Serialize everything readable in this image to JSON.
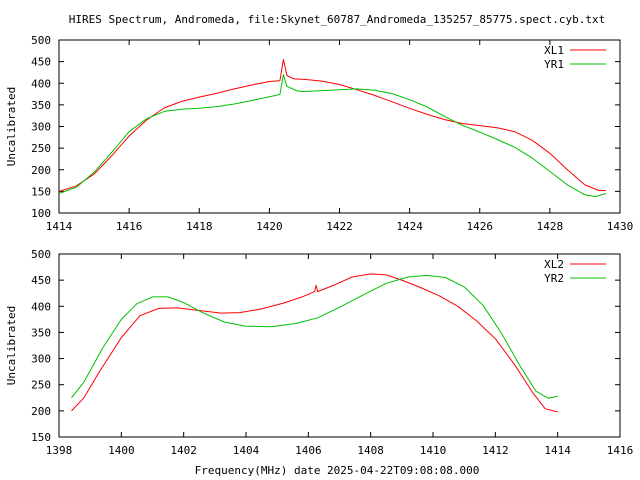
{
  "title": "HIRES Spectrum, Andromeda, file:Skynet_60787_Andromeda_135257_85775.spect.cyb.txt",
  "footer_xlabel": "Frequency(MHz) date 2025-04-22T09:08:08.000",
  "chart_data": [
    {
      "type": "line",
      "title": "HIRES Spectrum, Andromeda, file:Skynet_60787_Andromeda_135257_85775.spect.cyb.txt",
      "xlabel": "",
      "ylabel": "Uncalibrated",
      "xlim": [
        1414,
        1430
      ],
      "ylim": [
        100,
        500
      ],
      "xticks": [
        1414,
        1416,
        1418,
        1420,
        1422,
        1424,
        1426,
        1428,
        1430
      ],
      "yticks": [
        100,
        150,
        200,
        250,
        300,
        350,
        400,
        450,
        500
      ],
      "grid": false,
      "legend": "top-right",
      "series": [
        {
          "name": "XL1",
          "color": "#ff0000",
          "points": [
            [
              1414.0,
              150
            ],
            [
              1414.5,
              163
            ],
            [
              1415.0,
              190
            ],
            [
              1415.5,
              232
            ],
            [
              1416.0,
              278
            ],
            [
              1416.5,
              315
            ],
            [
              1417.0,
              343
            ],
            [
              1417.5,
              358
            ],
            [
              1418.0,
              368
            ],
            [
              1418.5,
              377
            ],
            [
              1419.0,
              387
            ],
            [
              1419.5,
              396
            ],
            [
              1420.0,
              404
            ],
            [
              1420.3,
              406
            ],
            [
              1420.4,
              455
            ],
            [
              1420.5,
              418
            ],
            [
              1420.7,
              410
            ],
            [
              1421.0,
              409
            ],
            [
              1421.5,
              405
            ],
            [
              1422.0,
              397
            ],
            [
              1422.5,
              385
            ],
            [
              1423.0,
              372
            ],
            [
              1423.5,
              357
            ],
            [
              1424.0,
              342
            ],
            [
              1424.5,
              328
            ],
            [
              1425.0,
              316
            ],
            [
              1425.5,
              307
            ],
            [
              1426.0,
              302
            ],
            [
              1426.5,
              297
            ],
            [
              1427.0,
              288
            ],
            [
              1427.5,
              268
            ],
            [
              1428.0,
              238
            ],
            [
              1428.5,
              200
            ],
            [
              1429.0,
              165
            ],
            [
              1429.4,
              152
            ],
            [
              1429.6,
              152
            ]
          ]
        },
        {
          "name": "YR1",
          "color": "#00c000",
          "points": [
            [
              1414.0,
              145
            ],
            [
              1414.5,
              160
            ],
            [
              1415.0,
              194
            ],
            [
              1415.5,
              240
            ],
            [
              1416.0,
              288
            ],
            [
              1416.5,
              318
            ],
            [
              1417.0,
              335
            ],
            [
              1417.5,
              340
            ],
            [
              1418.0,
              342
            ],
            [
              1418.5,
              346
            ],
            [
              1419.0,
              352
            ],
            [
              1419.5,
              360
            ],
            [
              1420.0,
              369
            ],
            [
              1420.3,
              374
            ],
            [
              1420.4,
              420
            ],
            [
              1420.5,
              393
            ],
            [
              1420.8,
              382
            ],
            [
              1421.0,
              381
            ],
            [
              1421.5,
              383
            ],
            [
              1422.0,
              385
            ],
            [
              1422.5,
              387
            ],
            [
              1423.0,
              384
            ],
            [
              1423.5,
              376
            ],
            [
              1424.0,
              362
            ],
            [
              1424.5,
              345
            ],
            [
              1425.0,
              323
            ],
            [
              1425.5,
              303
            ],
            [
              1426.0,
              287
            ],
            [
              1426.5,
              270
            ],
            [
              1427.0,
              252
            ],
            [
              1427.5,
              227
            ],
            [
              1428.0,
              196
            ],
            [
              1428.5,
              165
            ],
            [
              1429.0,
              142
            ],
            [
              1429.3,
              138
            ],
            [
              1429.6,
              145
            ]
          ]
        }
      ]
    },
    {
      "type": "line",
      "xlabel": "Frequency(MHz) date 2025-04-22T09:08:08.000",
      "ylabel": "Uncalibrated",
      "xlim": [
        1398,
        1416
      ],
      "ylim": [
        150,
        500
      ],
      "xticks": [
        1398,
        1400,
        1402,
        1404,
        1406,
        1408,
        1410,
        1412,
        1414,
        1416
      ],
      "yticks": [
        150,
        200,
        250,
        300,
        350,
        400,
        450,
        500
      ],
      "grid": false,
      "legend": "top-right",
      "series": [
        {
          "name": "XL2",
          "color": "#ff0000",
          "points": [
            [
              1398.4,
              200
            ],
            [
              1398.8,
              225
            ],
            [
              1399.3,
              275
            ],
            [
              1400.0,
              340
            ],
            [
              1400.6,
              382
            ],
            [
              1401.2,
              396
            ],
            [
              1401.8,
              397
            ],
            [
              1402.5,
              392
            ],
            [
              1403.2,
              387
            ],
            [
              1403.8,
              388
            ],
            [
              1404.5,
              395
            ],
            [
              1405.2,
              406
            ],
            [
              1405.8,
              418
            ],
            [
              1406.2,
              428
            ],
            [
              1406.25,
              440
            ],
            [
              1406.3,
              428
            ],
            [
              1406.8,
              440
            ],
            [
              1407.4,
              456
            ],
            [
              1408.0,
              462
            ],
            [
              1408.5,
              460
            ],
            [
              1409.0,
              450
            ],
            [
              1409.6,
              436
            ],
            [
              1410.2,
              420
            ],
            [
              1410.8,
              400
            ],
            [
              1411.4,
              372
            ],
            [
              1412.0,
              338
            ],
            [
              1412.6,
              290
            ],
            [
              1413.2,
              235
            ],
            [
              1413.6,
              204
            ],
            [
              1414.0,
              198
            ]
          ]
        },
        {
          "name": "YR2",
          "color": "#00c000",
          "points": [
            [
              1398.4,
              225
            ],
            [
              1398.8,
              255
            ],
            [
              1399.4,
              320
            ],
            [
              1400.0,
              375
            ],
            [
              1400.5,
              405
            ],
            [
              1401.0,
              418
            ],
            [
              1401.5,
              418
            ],
            [
              1402.0,
              407
            ],
            [
              1402.6,
              388
            ],
            [
              1403.3,
              370
            ],
            [
              1404.0,
              362
            ],
            [
              1404.8,
              361
            ],
            [
              1405.6,
              367
            ],
            [
              1406.3,
              378
            ],
            [
              1407.0,
              398
            ],
            [
              1407.8,
              423
            ],
            [
              1408.5,
              444
            ],
            [
              1409.2,
              456
            ],
            [
              1409.8,
              459
            ],
            [
              1410.4,
              455
            ],
            [
              1411.0,
              437
            ],
            [
              1411.6,
              402
            ],
            [
              1412.2,
              348
            ],
            [
              1412.8,
              285
            ],
            [
              1413.3,
              238
            ],
            [
              1413.7,
              224
            ],
            [
              1414.0,
              228
            ]
          ]
        }
      ]
    }
  ]
}
